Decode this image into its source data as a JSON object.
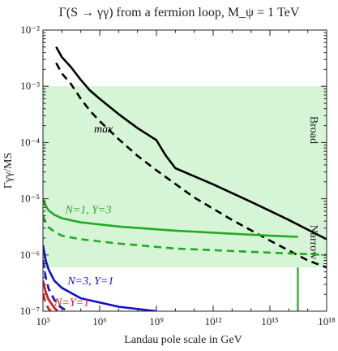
{
  "chart_data": {
    "type": "line",
    "title": "Γ(S → γγ) from a fermion loop, M_ψ = 1 TeV",
    "xlabel": "Landau pole scale in GeV",
    "ylabel": "Γγγ/MS",
    "x_scale": "log",
    "y_scale": "log",
    "xlim": [
      1000,
      1e+18
    ],
    "ylim": [
      1e-07,
      0.01
    ],
    "x_ticks": [
      {
        "value": 1000,
        "label": "10³"
      },
      {
        "value": 1000000,
        "label": "10⁶"
      },
      {
        "value": 1000000000,
        "label": "10⁹"
      },
      {
        "value": 1000000000000.0,
        "label": "10¹²"
      },
      {
        "value": 1000000000000000.0,
        "label": "10¹⁵"
      },
      {
        "value": 1e+18,
        "label": "10¹⁸"
      }
    ],
    "y_ticks": [
      {
        "value": 1e-07,
        "label": "10⁻⁷"
      },
      {
        "value": 1e-06,
        "label": "10⁻⁶"
      },
      {
        "value": 1e-05,
        "label": "10⁻⁵"
      },
      {
        "value": 0.0001,
        "label": "10⁻⁴"
      },
      {
        "value": 0.001,
        "label": "10⁻³"
      },
      {
        "value": 0.01,
        "label": "10⁻²"
      }
    ],
    "shaded_band": {
      "y_range": [
        6e-07,
        0.001
      ],
      "color": "#d6f5d6",
      "labels": [
        "Broad",
        "Narrow"
      ]
    },
    "vertical_line": {
      "x": 3e+16,
      "color": "#22aa22"
    },
    "series": [
      {
        "name": "max",
        "color": "#000000",
        "style": "solid",
        "label_class": "max",
        "points": [
          [
            5000,
            0.005
          ],
          [
            10000,
            0.0033
          ],
          [
            30000,
            0.0022
          ],
          [
            100000,
            0.0013
          ],
          [
            300000,
            0.00085
          ],
          [
            1000000,
            0.0006
          ],
          [
            10000000,
            0.00032
          ],
          [
            100000000,
            0.00018
          ],
          [
            1000000000,
            0.00011
          ],
          [
            3000000000,
            6e-05
          ],
          [
            10000000000,
            3.5e-05
          ],
          [
            1000000000000.0,
            1.8e-05
          ],
          [
            100000000000000.0,
            8.8e-06
          ],
          [
            1e+16,
            4.2e-06
          ],
          [
            1e+18,
            1.9e-06
          ]
        ]
      },
      {
        "name": "max",
        "color": "#000000",
        "style": "dashed",
        "points": [
          [
            5000,
            0.0026
          ],
          [
            10000,
            0.0017
          ],
          [
            30000,
            0.0011
          ],
          [
            100000,
            0.0006
          ],
          [
            300000,
            0.00037
          ],
          [
            1000000,
            0.00024
          ],
          [
            10000000,
            0.000115
          ],
          [
            100000000,
            5.8e-05
          ],
          [
            1000000000,
            3.2e-05
          ],
          [
            100000000000.0,
            1.05e-05
          ],
          [
            10000000000000.0,
            4.2e-06
          ],
          [
            1000000000000000.0,
            1.8e-06
          ],
          [
            1e+17,
            8e-07
          ],
          [
            1e+18,
            6e-07
          ]
        ]
      },
      {
        "name": "N=1, Y=3",
        "color": "#22aa22",
        "style": "solid",
        "points": [
          [
            1000,
            1e-05
          ],
          [
            1400,
            7.5e-06
          ],
          [
            2000,
            6.2e-06
          ],
          [
            4000,
            5.2e-06
          ],
          [
            10000,
            4.5e-06
          ],
          [
            100000,
            3.8e-06
          ],
          [
            10000000,
            3.2e-06
          ],
          [
            10000000000.0,
            2.7e-06
          ],
          [
            1000000000000000.0,
            2.2e-06
          ],
          [
            3e+16,
            2.1e-06
          ]
        ]
      },
      {
        "name": "N=1, Y=3",
        "color": "#22aa22",
        "style": "dashed",
        "points": [
          [
            1000,
            5e-06
          ],
          [
            1400,
            3.8e-06
          ],
          [
            2000,
            3.1e-06
          ],
          [
            4000,
            2.6e-06
          ],
          [
            10000,
            2.2e-06
          ],
          [
            100000,
            1.9e-06
          ],
          [
            10000000,
            1.6e-06
          ],
          [
            10000000000.0,
            1.3e-06
          ],
          [
            1000000000000000.0,
            1.1e-06
          ],
          [
            1e+18,
            1e-06
          ]
        ]
      },
      {
        "name": "N=3, Y=1",
        "color": "#1010cc",
        "style": "solid",
        "points": [
          [
            1000,
            1.5e-06
          ],
          [
            1400,
            8e-07
          ],
          [
            2000,
            5.5e-07
          ],
          [
            4000,
            3.5e-07
          ],
          [
            10000,
            2.6e-07
          ],
          [
            100000,
            1.7e-07
          ],
          [
            10000000,
            1.2e-07
          ],
          [
            1000000000,
            1e-07
          ]
        ]
      },
      {
        "name": "N=3, Y=1",
        "color": "#1010cc",
        "style": "dashed",
        "points": [
          [
            1000,
            8e-07
          ],
          [
            1400,
            4e-07
          ],
          [
            2000,
            2.5e-07
          ],
          [
            4000,
            1.6e-07
          ],
          [
            8000,
            1.2e-07
          ],
          [
            20000,
            1e-07
          ]
        ]
      },
      {
        "name": "N=Y=1",
        "color": "#dd1111",
        "style": "solid",
        "points": [
          [
            1000,
            3.5e-07
          ],
          [
            1400,
            2.2e-07
          ],
          [
            2000,
            1.6e-07
          ],
          [
            4000,
            1.15e-07
          ],
          [
            6000,
            1e-07
          ]
        ]
      },
      {
        "name": "N=Y=1",
        "color": "#dd1111",
        "style": "dashed",
        "points": [
          [
            1000,
            2e-07
          ],
          [
            1400,
            1.4e-07
          ],
          [
            2000,
            1.1e-07
          ],
          [
            2600,
            1e-07
          ]
        ]
      }
    ],
    "annotations": [
      {
        "text": "max",
        "color": "#000000",
        "x": 500000,
        "y": 0.00015
      },
      {
        "text": "N=1, Y=3",
        "color": "#22aa22",
        "x": 15000,
        "y": 5.5e-06
      },
      {
        "text": "N=3, Y=1",
        "color": "#1010cc",
        "x": 20000,
        "y": 3e-07
      },
      {
        "text": "N=Y=1",
        "color": "#dd1111",
        "x": 4000,
        "y": 1.25e-07
      }
    ]
  }
}
